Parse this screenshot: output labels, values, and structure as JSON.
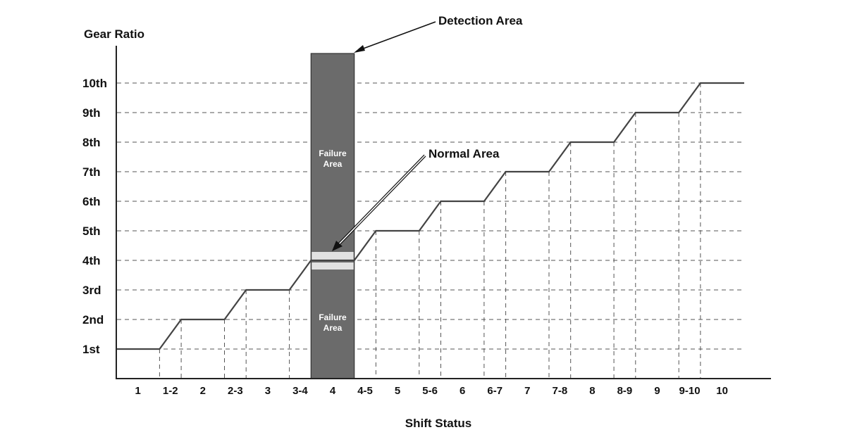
{
  "chart_data": {
    "type": "line",
    "ylabel": "Gear Ratio",
    "xlabel": "Shift Status",
    "y_ticks": [
      "1st",
      "2nd",
      "3rd",
      "4th",
      "5th",
      "6th",
      "7th",
      "8th",
      "9th",
      "10th"
    ],
    "x_ticks": [
      "1",
      "1-2",
      "2",
      "2-3",
      "3",
      "3-4",
      "4",
      "4-5",
      "5",
      "5-6",
      "6",
      "6-7",
      "7",
      "7-8",
      "8",
      "8-9",
      "9",
      "9-10",
      "10"
    ],
    "series": [
      {
        "values": [
          1,
          1.5,
          2,
          2.5,
          3,
          3.5,
          4,
          4.5,
          5,
          5.5,
          6,
          6.5,
          7,
          7.5,
          8,
          8.5,
          9,
          9.5,
          10
        ]
      }
    ],
    "grid": true,
    "annotations": {
      "detection_area": "Detection Area",
      "normal_area": "Normal Area",
      "failure_area_line1": "Failure",
      "failure_area_line2": "Area"
    },
    "colors": {
      "line": "#444444",
      "detection_fill": "#6b6b6b",
      "normal_band": "#e2e2e2",
      "grid": "#555555"
    }
  }
}
